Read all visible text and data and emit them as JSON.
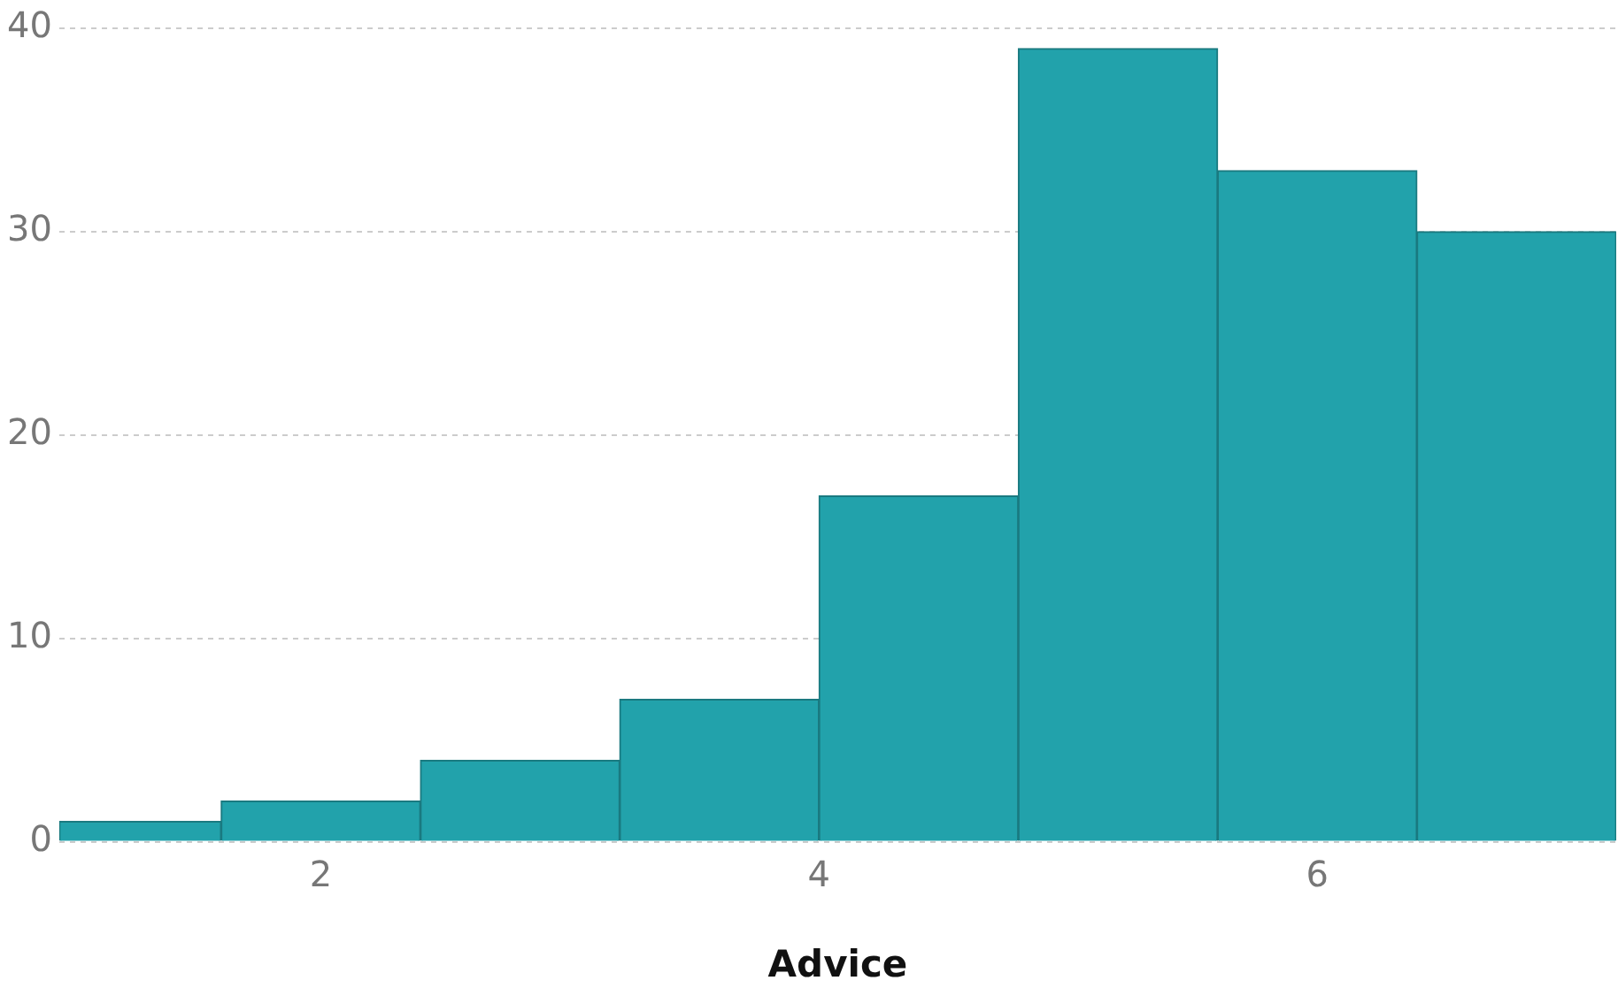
{
  "chart_data": {
    "type": "histogram",
    "xlabel": "Advice",
    "bins": [
      0.95,
      1.6,
      2.4,
      3.2,
      4.0,
      4.8,
      5.6,
      6.4,
      7.2
    ],
    "values": [
      1,
      2,
      4,
      7,
      17,
      39,
      33,
      30
    ],
    "color": "#22a2ab",
    "xlim": [
      0.95,
      7.2
    ],
    "xticks": [
      2,
      4,
      6
    ],
    "ylim": [
      0,
      40
    ],
    "yticks": [
      0,
      10,
      20,
      30,
      40
    ],
    "grid": "y",
    "legend": false
  }
}
